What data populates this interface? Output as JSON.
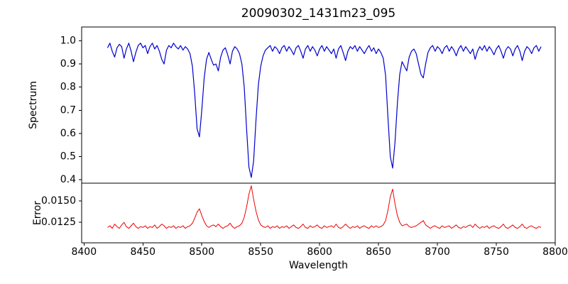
{
  "colors": {
    "spectrum_line": "#0000cd",
    "error_line": "#ee0000",
    "axis": "#000000",
    "background": "#ffffff"
  },
  "chart_data": [
    {
      "type": "line",
      "panel": "top",
      "title": "20090302_1431m23_095",
      "ylabel": "Spectrum",
      "ylim": [
        0.385,
        1.06
      ],
      "yticks": [
        0.4,
        0.5,
        0.6,
        0.7,
        0.8,
        0.9,
        1.0
      ],
      "ytick_labels": [
        "0.4",
        "0.5",
        "0.6",
        "0.7",
        "0.8",
        "0.9",
        "1.0"
      ],
      "grid": false,
      "x_start": 8420,
      "x_step": 2,
      "series": [
        {
          "name": "spectrum",
          "color": "#0000cd",
          "values": [
            0.97,
            0.99,
            0.955,
            0.93,
            0.97,
            0.985,
            0.975,
            0.925,
            0.965,
            0.99,
            0.955,
            0.91,
            0.95,
            0.98,
            0.99,
            0.97,
            0.98,
            0.945,
            0.975,
            0.99,
            0.965,
            0.98,
            0.955,
            0.92,
            0.9,
            0.96,
            0.98,
            0.97,
            0.99,
            0.975,
            0.965,
            0.98,
            0.96,
            0.975,
            0.965,
            0.945,
            0.89,
            0.77,
            0.62,
            0.585,
            0.7,
            0.84,
            0.92,
            0.95,
            0.92,
            0.895,
            0.9,
            0.87,
            0.93,
            0.96,
            0.97,
            0.94,
            0.9,
            0.955,
            0.975,
            0.965,
            0.945,
            0.9,
            0.8,
            0.62,
            0.455,
            0.41,
            0.48,
            0.66,
            0.81,
            0.89,
            0.935,
            0.96,
            0.97,
            0.98,
            0.955,
            0.975,
            0.965,
            0.945,
            0.97,
            0.98,
            0.955,
            0.975,
            0.96,
            0.94,
            0.97,
            0.98,
            0.955,
            0.925,
            0.965,
            0.98,
            0.955,
            0.975,
            0.96,
            0.935,
            0.965,
            0.98,
            0.955,
            0.975,
            0.96,
            0.945,
            0.965,
            0.925,
            0.965,
            0.98,
            0.95,
            0.915,
            0.955,
            0.975,
            0.965,
            0.98,
            0.955,
            0.975,
            0.96,
            0.945,
            0.965,
            0.98,
            0.955,
            0.97,
            0.945,
            0.965,
            0.95,
            0.925,
            0.85,
            0.67,
            0.5,
            0.45,
            0.56,
            0.73,
            0.855,
            0.91,
            0.89,
            0.87,
            0.93,
            0.955,
            0.965,
            0.945,
            0.9,
            0.855,
            0.84,
            0.9,
            0.95,
            0.97,
            0.98,
            0.955,
            0.975,
            0.965,
            0.945,
            0.97,
            0.98,
            0.955,
            0.975,
            0.96,
            0.935,
            0.965,
            0.98,
            0.955,
            0.975,
            0.96,
            0.945,
            0.965,
            0.92,
            0.955,
            0.975,
            0.96,
            0.98,
            0.955,
            0.975,
            0.96,
            0.94,
            0.965,
            0.98,
            0.955,
            0.925,
            0.96,
            0.975,
            0.965,
            0.935,
            0.965,
            0.98,
            0.955,
            0.915,
            0.955,
            0.975,
            0.965,
            0.945,
            0.97,
            0.98,
            0.955,
            0.975
          ]
        }
      ]
    },
    {
      "type": "line",
      "panel": "bottom",
      "ylabel": "Error",
      "xlabel": "Wavelength",
      "ylim": [
        0.0101,
        0.0171
      ],
      "yticks": [
        0.0125,
        0.015
      ],
      "ytick_labels": [
        "0.0125",
        "0.0150"
      ],
      "xticks": [
        8400,
        8450,
        8500,
        8550,
        8600,
        8650,
        8700,
        8750,
        8800
      ],
      "xtick_labels": [
        "8400",
        "8450",
        "8500",
        "8550",
        "8600",
        "8650",
        "8700",
        "8750",
        "8800"
      ],
      "xlim": [
        8398,
        8800
      ],
      "grid": false,
      "x_start": 8420,
      "x_step": 2,
      "series": [
        {
          "name": "error",
          "color": "#ee0000",
          "values": [
            0.0119,
            0.0121,
            0.0118,
            0.0123,
            0.012,
            0.0118,
            0.0122,
            0.0125,
            0.012,
            0.0118,
            0.0121,
            0.0124,
            0.012,
            0.0118,
            0.012,
            0.0119,
            0.0121,
            0.0118,
            0.012,
            0.0119,
            0.0122,
            0.0118,
            0.012,
            0.0123,
            0.0121,
            0.0118,
            0.012,
            0.0119,
            0.0121,
            0.0118,
            0.012,
            0.0119,
            0.0121,
            0.0118,
            0.012,
            0.0121,
            0.0124,
            0.013,
            0.0137,
            0.0141,
            0.0133,
            0.0126,
            0.0121,
            0.0119,
            0.0121,
            0.0122,
            0.012,
            0.0123,
            0.012,
            0.0118,
            0.012,
            0.0121,
            0.0124,
            0.012,
            0.0118,
            0.012,
            0.0121,
            0.0124,
            0.0131,
            0.0143,
            0.0158,
            0.0168,
            0.0152,
            0.0138,
            0.0128,
            0.0122,
            0.012,
            0.0119,
            0.0121,
            0.0118,
            0.012,
            0.0119,
            0.0121,
            0.0118,
            0.012,
            0.0119,
            0.0121,
            0.0118,
            0.012,
            0.0122,
            0.0119,
            0.0118,
            0.012,
            0.0123,
            0.0119,
            0.0118,
            0.0121,
            0.0119,
            0.012,
            0.0122,
            0.0119,
            0.0118,
            0.0121,
            0.0119,
            0.012,
            0.0121,
            0.0119,
            0.0123,
            0.0119,
            0.0118,
            0.012,
            0.0123,
            0.012,
            0.0118,
            0.012,
            0.0119,
            0.0121,
            0.0118,
            0.012,
            0.0121,
            0.0119,
            0.0118,
            0.0121,
            0.0119,
            0.0121,
            0.0119,
            0.012,
            0.0122,
            0.0127,
            0.0139,
            0.0155,
            0.0164,
            0.0147,
            0.0133,
            0.0125,
            0.0121,
            0.0122,
            0.0123,
            0.012,
            0.0119,
            0.012,
            0.0121,
            0.0123,
            0.0125,
            0.0127,
            0.0122,
            0.012,
            0.0118,
            0.012,
            0.0121,
            0.0119,
            0.0118,
            0.0121,
            0.0119,
            0.012,
            0.0121,
            0.0118,
            0.012,
            0.0122,
            0.0119,
            0.0118,
            0.012,
            0.0119,
            0.0121,
            0.0122,
            0.0119,
            0.0123,
            0.012,
            0.0118,
            0.012,
            0.0119,
            0.0121,
            0.0118,
            0.012,
            0.0121,
            0.0119,
            0.0118,
            0.012,
            0.0123,
            0.0119,
            0.0118,
            0.012,
            0.0122,
            0.0119,
            0.0118,
            0.012,
            0.0123,
            0.0119,
            0.0118,
            0.012,
            0.0121,
            0.0119,
            0.0118,
            0.012,
            0.0119
          ]
        }
      ]
    }
  ]
}
